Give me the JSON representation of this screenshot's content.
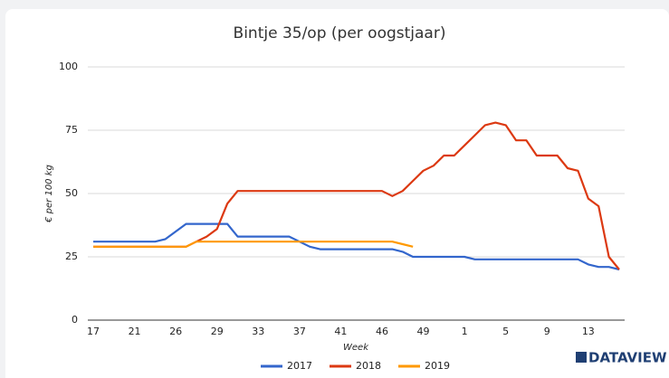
{
  "chart_data": {
    "type": "line",
    "title": "Bintje 35/op (per oogstjaar)",
    "x_label": "Week",
    "y_label": "€ per 100 kg",
    "brand": "DATAVIEW",
    "categories": [
      "17",
      null,
      null,
      null,
      "21",
      null,
      null,
      null,
      "26",
      null,
      null,
      null,
      "29",
      null,
      null,
      null,
      "33",
      null,
      null,
      null,
      "37",
      null,
      null,
      null,
      "41",
      null,
      null,
      null,
      "46",
      null,
      null,
      null,
      "49",
      null,
      null,
      null,
      "1",
      null,
      null,
      null,
      "5",
      null,
      null,
      null,
      "9",
      null,
      null,
      null,
      "13",
      null,
      null,
      null
    ],
    "series": [
      {
        "name": "2017",
        "color": "#3366cc",
        "values": [
          31,
          31,
          31,
          31,
          31,
          31,
          31,
          32,
          35,
          38,
          38,
          38,
          38,
          38,
          33,
          33,
          33,
          33,
          33,
          33,
          31,
          29,
          28,
          28,
          28,
          28,
          28,
          28,
          28,
          28,
          27,
          25,
          25,
          25,
          25,
          25,
          25,
          24,
          24,
          24,
          24,
          24,
          24,
          24,
          24,
          24,
          24,
          24,
          22,
          21,
          21,
          20
        ]
      },
      {
        "name": "2018",
        "color": "#dc3912",
        "values": [
          29,
          29,
          29,
          29,
          29,
          29,
          29,
          29,
          29,
          29,
          31,
          33,
          36,
          46,
          51,
          51,
          51,
          51,
          51,
          51,
          51,
          51,
          51,
          51,
          51,
          51,
          51,
          51,
          51,
          49,
          51,
          55,
          59,
          61,
          65,
          65,
          69,
          73,
          77,
          78,
          77,
          71,
          71,
          65,
          65,
          65,
          60,
          59,
          48,
          45,
          25,
          20
        ]
      },
      {
        "name": "2019",
        "color": "#ff9900",
        "values": [
          29,
          29,
          29,
          29,
          29,
          29,
          29,
          29,
          29,
          29,
          31,
          31,
          31,
          31,
          31,
          31,
          31,
          31,
          31,
          31,
          31,
          31,
          31,
          31,
          31,
          31,
          31,
          31,
          31,
          31,
          30,
          29,
          null,
          null,
          null,
          null,
          null,
          null,
          null,
          null,
          null,
          null,
          null,
          null,
          null,
          null,
          null,
          null,
          null,
          null,
          null,
          null
        ]
      }
    ],
    "ylim": [
      0,
      100
    ],
    "yticks": [
      0,
      25,
      50,
      75,
      100
    ],
    "grid": true,
    "legend": "bottom"
  }
}
